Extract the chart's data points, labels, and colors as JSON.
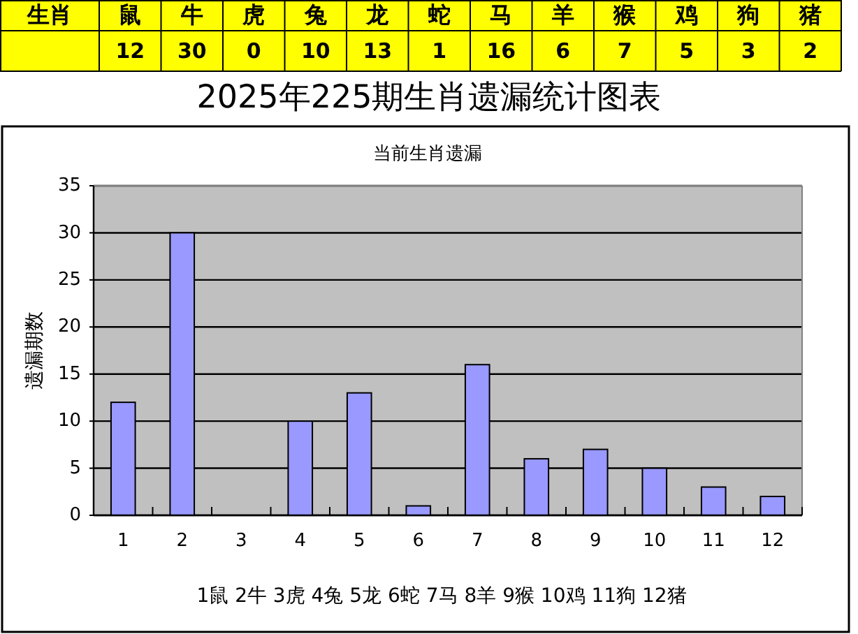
{
  "chart_data": [
    {
      "type": "other",
      "xlabel": "生肖",
      "categories": [
        "鼠",
        "牛",
        "虎",
        "兔",
        "龙",
        "蛇",
        "马",
        "羊",
        "猴",
        "鸡",
        "狗",
        "猪"
      ],
      "values": [
        12,
        30,
        0,
        10,
        13,
        1,
        16,
        6,
        7,
        5,
        3,
        2
      ],
      "data_labels": true
    },
    {
      "type": "bar",
      "title": "2025年225期生肖遗漏统计图表",
      "subtitle": "当前生肖遗漏",
      "ylabel": "遗漏期数",
      "categories": [
        "1",
        "2",
        "3",
        "4",
        "5",
        "6",
        "7",
        "8",
        "9",
        "10",
        "11",
        "12"
      ],
      "values": [
        12,
        30,
        0,
        10,
        13,
        1,
        16,
        6,
        7,
        5,
        3,
        2
      ],
      "color": "#9999ff",
      "ylim": [
        0,
        35
      ],
      "yticks": [
        0,
        5,
        10,
        15,
        20,
        25,
        30,
        35
      ],
      "grid": "y",
      "annotations": [
        "1鼠 2牛 3虎 4兔 5龙 6蛇 7马 8羊 9猴 10鸡 11狗 12猪"
      ]
    }
  ]
}
